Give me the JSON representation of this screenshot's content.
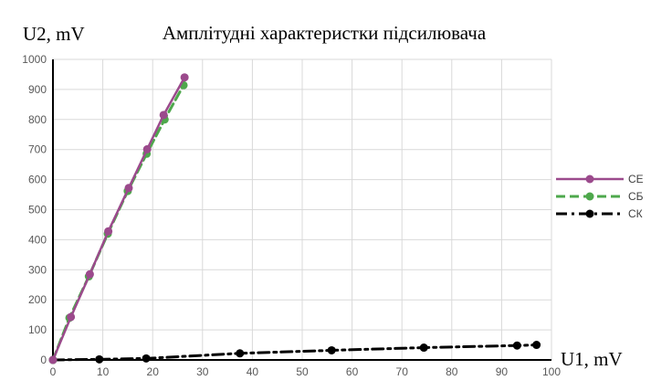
{
  "chart_data": {
    "type": "line",
    "title": "Амплітудні характеристки підсилювача",
    "ylabel": "U2, mV",
    "xlabel": "U1, mV",
    "xlim": [
      0,
      100
    ],
    "ylim": [
      0,
      1000
    ],
    "x_ticks": [
      "0",
      "10",
      "20",
      "30",
      "40",
      "50",
      "60",
      "70",
      "80",
      "90",
      "100"
    ],
    "y_ticks": [
      "0",
      "100",
      "200",
      "300",
      "400",
      "500",
      "600",
      "700",
      "800",
      "900",
      "1000"
    ],
    "grid": true,
    "legend_position": "right",
    "series": [
      {
        "name": "СЕ",
        "color": "#9B4A8C",
        "line_style": "solid",
        "points": [
          [
            0,
            0
          ],
          [
            3.6,
            143
          ],
          [
            7.4,
            285
          ],
          [
            11.1,
            428
          ],
          [
            15.2,
            572
          ],
          [
            18.9,
            701
          ],
          [
            22.2,
            815
          ],
          [
            26.4,
            940
          ]
        ]
      },
      {
        "name": "СБ",
        "color": "#4EA84C",
        "line_style": "dashed",
        "points": [
          [
            0,
            0
          ],
          [
            3.3,
            140
          ],
          [
            7.2,
            278
          ],
          [
            11.0,
            420
          ],
          [
            15.0,
            562
          ],
          [
            18.8,
            686
          ],
          [
            22.4,
            800
          ],
          [
            26.2,
            914
          ]
        ]
      },
      {
        "name": "СК",
        "color": "#000000",
        "line_style": "dashdot",
        "points": [
          [
            0,
            0
          ],
          [
            9.3,
            2
          ],
          [
            18.7,
            5
          ],
          [
            37.5,
            22
          ],
          [
            55.9,
            32
          ],
          [
            74.4,
            41
          ],
          [
            93.1,
            48
          ],
          [
            97,
            50
          ]
        ]
      }
    ]
  }
}
